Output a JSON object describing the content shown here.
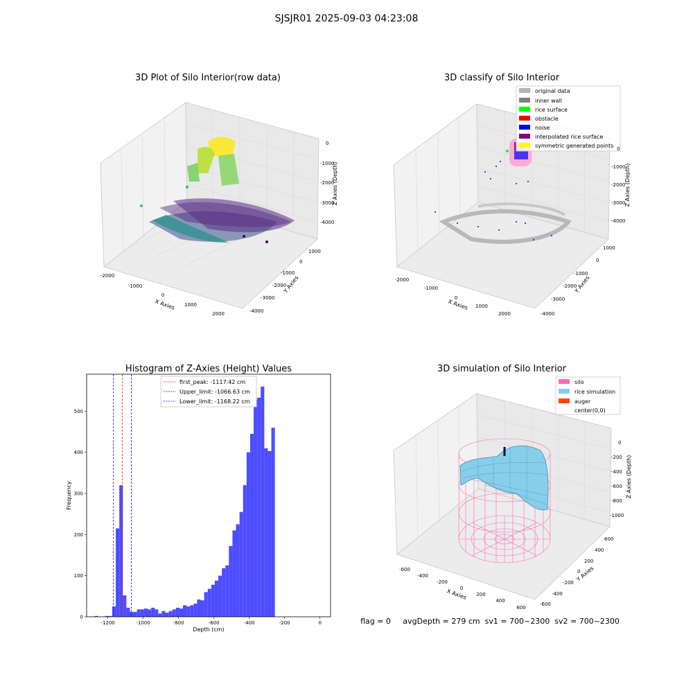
{
  "suptitle": "SJSJR01 2025-09-03 04:23:08",
  "panels": {
    "raw": {
      "title": "3D Plot of Silo Interior(row data)",
      "xlabel": "X Axies",
      "ylabel": "Y Axies",
      "zlabel": "Z Axies (Depth)",
      "xticks": [
        "-2000",
        "-1000",
        "0",
        "1000",
        "2000"
      ],
      "yticks": [
        "1000",
        "0",
        "-1000",
        "-2000",
        "-3000",
        "-4000"
      ],
      "zticks": [
        "0",
        "-1000",
        "-2000",
        "-3000",
        "-4000"
      ]
    },
    "classify": {
      "title": "3D classify of Silo Interior",
      "xlabel": "X Axies",
      "ylabel": "Y Axies",
      "zlabel": "Z Axies (Depth)",
      "xticks": [
        "-2000",
        "-1000",
        "0",
        "1000",
        "2000"
      ],
      "yticks": [
        "1000",
        "0",
        "-1000",
        "-2000",
        "-3000",
        "-4000"
      ],
      "zticks": [
        "0",
        "-1000",
        "-2000",
        "-3000",
        "-4000"
      ],
      "legend": [
        {
          "label": "original data",
          "color": "#b3b3b3"
        },
        {
          "label": "inner wall",
          "color": "#808080"
        },
        {
          "label": "rice surface",
          "color": "#00ff00"
        },
        {
          "label": "obstacle",
          "color": "#ff0000"
        },
        {
          "label": "noise",
          "color": "#0000ff"
        },
        {
          "label": "interpolated rice surface",
          "color": "#800080"
        },
        {
          "label": "symmetric generated points",
          "color": "#ffff00"
        }
      ]
    },
    "simulation": {
      "title": "3D simulation of Silo Interior",
      "xlabel": "X Axies",
      "ylabel": "Y Axies",
      "zlabel": "Z Axies (Depth)",
      "xticks": [
        "-600",
        "-400",
        "-200",
        "0",
        "200",
        "400",
        "600"
      ],
      "yticks": [
        "600",
        "400",
        "200",
        "0",
        "-200",
        "-400",
        "-600"
      ],
      "zticks": [
        "0",
        "-200",
        "-400",
        "-600",
        "-800",
        "-1000"
      ],
      "legend": [
        {
          "label": "silo",
          "color": "#ff69b4"
        },
        {
          "label": "rice simulation",
          "color": "#87ceeb"
        },
        {
          "label": "auger",
          "color": "#ff4500"
        },
        {
          "label": "center(0,0)",
          "color": ""
        }
      ]
    }
  },
  "status_text": "flag = 0     avgDepth = 279 cm  sv1 = 700~2300  sv2 = 700~2300",
  "chart_data": [
    {
      "type": "bar",
      "title": "Histogram of Z-Axies (Height) Values",
      "xlabel": "Depth (cm)",
      "ylabel": "Frequency",
      "xlim": [
        -1320,
        60
      ],
      "ylim": [
        0,
        590
      ],
      "xticks": [
        -1200,
        -1000,
        -800,
        -600,
        -400,
        -200,
        0
      ],
      "yticks": [
        0,
        100,
        200,
        300,
        400,
        500
      ],
      "bin_width": 20,
      "bar_color": "#4d4dff",
      "bins": [
        [
          -1265,
          2
        ],
        [
          -1245,
          0
        ],
        [
          -1225,
          0
        ],
        [
          -1205,
          2
        ],
        [
          -1185,
          2
        ],
        [
          -1165,
          25
        ],
        [
          -1145,
          215
        ],
        [
          -1125,
          320
        ],
        [
          -1105,
          52
        ],
        [
          -1085,
          22
        ],
        [
          -1065,
          12
        ],
        [
          -1045,
          12
        ],
        [
          -1025,
          18
        ],
        [
          -1005,
          18
        ],
        [
          -985,
          20
        ],
        [
          -965,
          18
        ],
        [
          -945,
          22
        ],
        [
          -925,
          18
        ],
        [
          -905,
          8
        ],
        [
          -885,
          14
        ],
        [
          -865,
          10
        ],
        [
          -845,
          14
        ],
        [
          -825,
          18
        ],
        [
          -805,
          22
        ],
        [
          -785,
          20
        ],
        [
          -765,
          28
        ],
        [
          -745,
          25
        ],
        [
          -725,
          28
        ],
        [
          -705,
          32
        ],
        [
          -685,
          42
        ],
        [
          -665,
          40
        ],
        [
          -645,
          60
        ],
        [
          -625,
          68
        ],
        [
          -605,
          78
        ],
        [
          -585,
          88
        ],
        [
          -565,
          100
        ],
        [
          -545,
          118
        ],
        [
          -525,
          125
        ],
        [
          -505,
          172
        ],
        [
          -485,
          210
        ],
        [
          -465,
          225
        ],
        [
          -445,
          255
        ],
        [
          -425,
          320
        ],
        [
          -405,
          400
        ],
        [
          -385,
          445
        ],
        [
          -365,
          528
        ],
        [
          -345,
          533
        ],
        [
          -325,
          560
        ],
        [
          -305,
          410
        ],
        [
          -285,
          403
        ],
        [
          -265,
          460
        ]
      ],
      "lines": [
        {
          "label": "first_peak: -1117.42 cm",
          "value": -1117.42,
          "color": "#ff0000"
        },
        {
          "label": "Upper_limit: -1066.63 cm",
          "value": -1066.63,
          "color": "#0000ff"
        },
        {
          "label": "Lower_limit: -1168.22 cm",
          "value": -1168.22,
          "color": "#0000ff"
        }
      ],
      "grid": false,
      "legend_position": "top-center"
    }
  ]
}
